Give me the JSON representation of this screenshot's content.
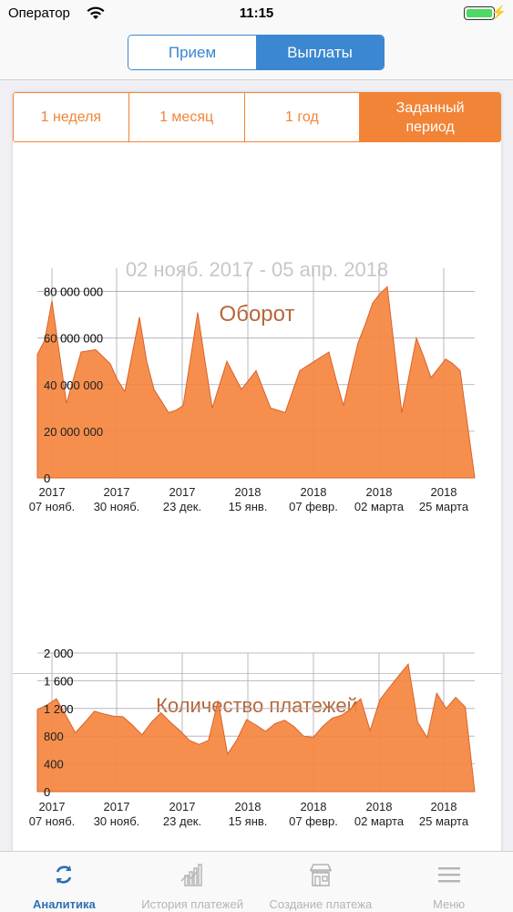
{
  "status_bar": {
    "carrier": "Оператор",
    "time": "11:15"
  },
  "header": {
    "segments": [
      {
        "label": "Прием"
      },
      {
        "label": "Выплаты"
      }
    ]
  },
  "period_tabs": [
    {
      "label": "1 неделя"
    },
    {
      "label": "1 месяц"
    },
    {
      "label": "1 год"
    },
    {
      "label": "Заданный период"
    }
  ],
  "date_range": "02 нояб. 2017 - 05 апр. 2018",
  "colors": {
    "accent": "#f28437",
    "fill": "#f5853f",
    "stroke": "#d9632a",
    "blue": "#3b87d1",
    "title": "#b5683a"
  },
  "chart_data": [
    {
      "type": "area",
      "title": "Оборот",
      "ylim": [
        0,
        90000000
      ],
      "yticks": [
        0,
        20000000,
        40000000,
        60000000,
        80000000
      ],
      "ytick_labels": [
        "0",
        "20 000 000",
        "40 000 000",
        "60 000 000",
        "80 000 000"
      ],
      "x_tick_labels": [
        {
          "year": "2017",
          "date": "07 нояб.",
          "i": 2
        },
        {
          "year": "2017",
          "date": "30 нояб.",
          "i": 14
        },
        {
          "year": "2017",
          "date": "23 дек.",
          "i": 26
        },
        {
          "year": "2018",
          "date": "15 янв.",
          "i": 38
        },
        {
          "year": "2018",
          "date": "07 февр.",
          "i": 50
        },
        {
          "year": "2018",
          "date": "02 марта",
          "i": 62
        },
        {
          "year": "2018",
          "date": "25 марта",
          "i": 74
        }
      ],
      "values": [
        53000000,
        59000000,
        76000000,
        54000000,
        32000000,
        43000000,
        54000000,
        54500000,
        55000000,
        52000000,
        49000000,
        42000000,
        37000000,
        53000000,
        69000000,
        50000000,
        38000000,
        33000000,
        28000000,
        29000000,
        31000000,
        51000000,
        71000000,
        50000000,
        30000000,
        40000000,
        50000000,
        44000000,
        38000000,
        42000000,
        46000000,
        38000000,
        30000000,
        29000000,
        28000000,
        37000000,
        46000000,
        48000000,
        50000000,
        52000000,
        54000000,
        42000000,
        31000000,
        45000000,
        58000000,
        66000000,
        75000000,
        79000000,
        82000000,
        55000000,
        28000000,
        44000000,
        60000000,
        52000000,
        43000000,
        47000000,
        51000000,
        49000000,
        46000000,
        23000000,
        0
      ]
    },
    {
      "type": "area",
      "title": "Количество платежей",
      "ylim": [
        0,
        2000
      ],
      "yticks": [
        0,
        400,
        800,
        1200,
        1600,
        2000
      ],
      "ytick_labels": [
        "0",
        "400",
        "800",
        "1 200",
        "1 600",
        "2 000"
      ],
      "x_tick_labels": [
        {
          "year": "2017",
          "date": "07 нояб.",
          "i": 2
        },
        {
          "year": "2017",
          "date": "30 нояб.",
          "i": 14
        },
        {
          "year": "2017",
          "date": "23 дек.",
          "i": 26
        },
        {
          "year": "2018",
          "date": "15 янв.",
          "i": 38
        },
        {
          "year": "2018",
          "date": "07 февр.",
          "i": 50
        },
        {
          "year": "2018",
          "date": "02 марта",
          "i": 62
        },
        {
          "year": "2018",
          "date": "25 марта",
          "i": 74
        }
      ],
      "values": [
        1180,
        1250,
        1340,
        1100,
        850,
        1000,
        1160,
        1120,
        1090,
        1080,
        960,
        820,
        1000,
        1140,
        1000,
        880,
        740,
        680,
        740,
        1310,
        540,
        750,
        1040,
        960,
        870,
        980,
        1030,
        940,
        800,
        780,
        940,
        1060,
        1100,
        1200,
        1340,
        880,
        1320,
        1500,
        1670,
        1840,
        1000,
        780,
        1420,
        1200,
        1360,
        1220,
        0
      ]
    }
  ],
  "tabbar": [
    {
      "label": "Аналитика",
      "icon": "refresh-icon"
    },
    {
      "label": "История платежей",
      "icon": "chart-bars-icon"
    },
    {
      "label": "Создание платежа",
      "icon": "store-icon"
    },
    {
      "label": "Меню",
      "icon": "menu-icon"
    }
  ]
}
